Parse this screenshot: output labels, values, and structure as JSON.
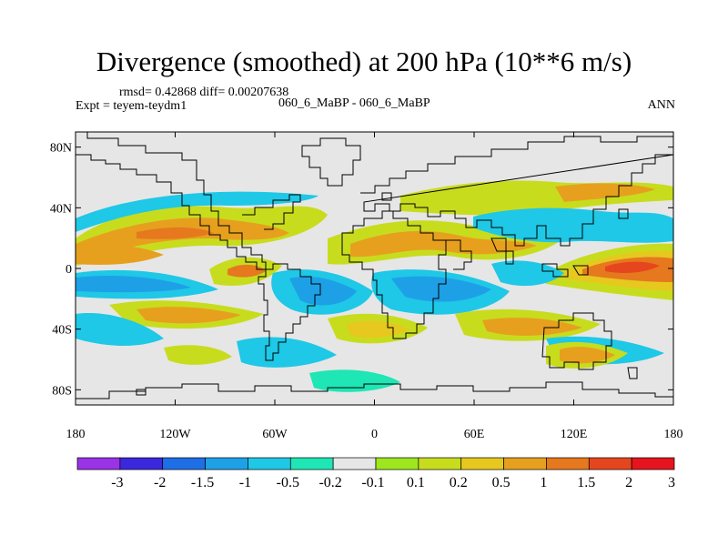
{
  "title": "Divergence (smoothed) at 200 hPa (10**6 m/s)",
  "stats": "rmsd= 0.42868 diff= 0.00207638",
  "experiment": "Expt = teyem-teydm1",
  "case_label": "060_6_MaBP - 060_6_MaBP",
  "season": "ANN",
  "map": {
    "lat_ticks": [
      {
        "value": 80,
        "label": "80N"
      },
      {
        "value": 40,
        "label": "40N"
      },
      {
        "value": 0,
        "label": "0"
      },
      {
        "value": -40,
        "label": "40S"
      },
      {
        "value": -80,
        "label": "80S"
      }
    ],
    "lon_ticks": [
      {
        "value": -180,
        "label": "180"
      },
      {
        "value": -120,
        "label": "120W"
      },
      {
        "value": -60,
        "label": "60W"
      },
      {
        "value": 0,
        "label": "0"
      },
      {
        "value": 60,
        "label": "60E"
      },
      {
        "value": 120,
        "label": "120E"
      },
      {
        "value": 180,
        "label": "180"
      }
    ],
    "background_color": "#e6e6e6"
  },
  "colorbar": {
    "colors": [
      "#9a32e6",
      "#3c28dc",
      "#1e6ee6",
      "#1ea0e6",
      "#1ec8e6",
      "#1ee6b4",
      "#e6e6e6",
      "#9ee61e",
      "#c8dc1e",
      "#e6c81e",
      "#e6a01e",
      "#e6781e",
      "#e6461e",
      "#e6141e"
    ],
    "labels": [
      "-3",
      "-2",
      "-1.5",
      "-1",
      "-0.5",
      "-0.2",
      "-0.1",
      "0.1",
      "0.2",
      "0.5",
      "1",
      "1.5",
      "2",
      "3"
    ]
  }
}
